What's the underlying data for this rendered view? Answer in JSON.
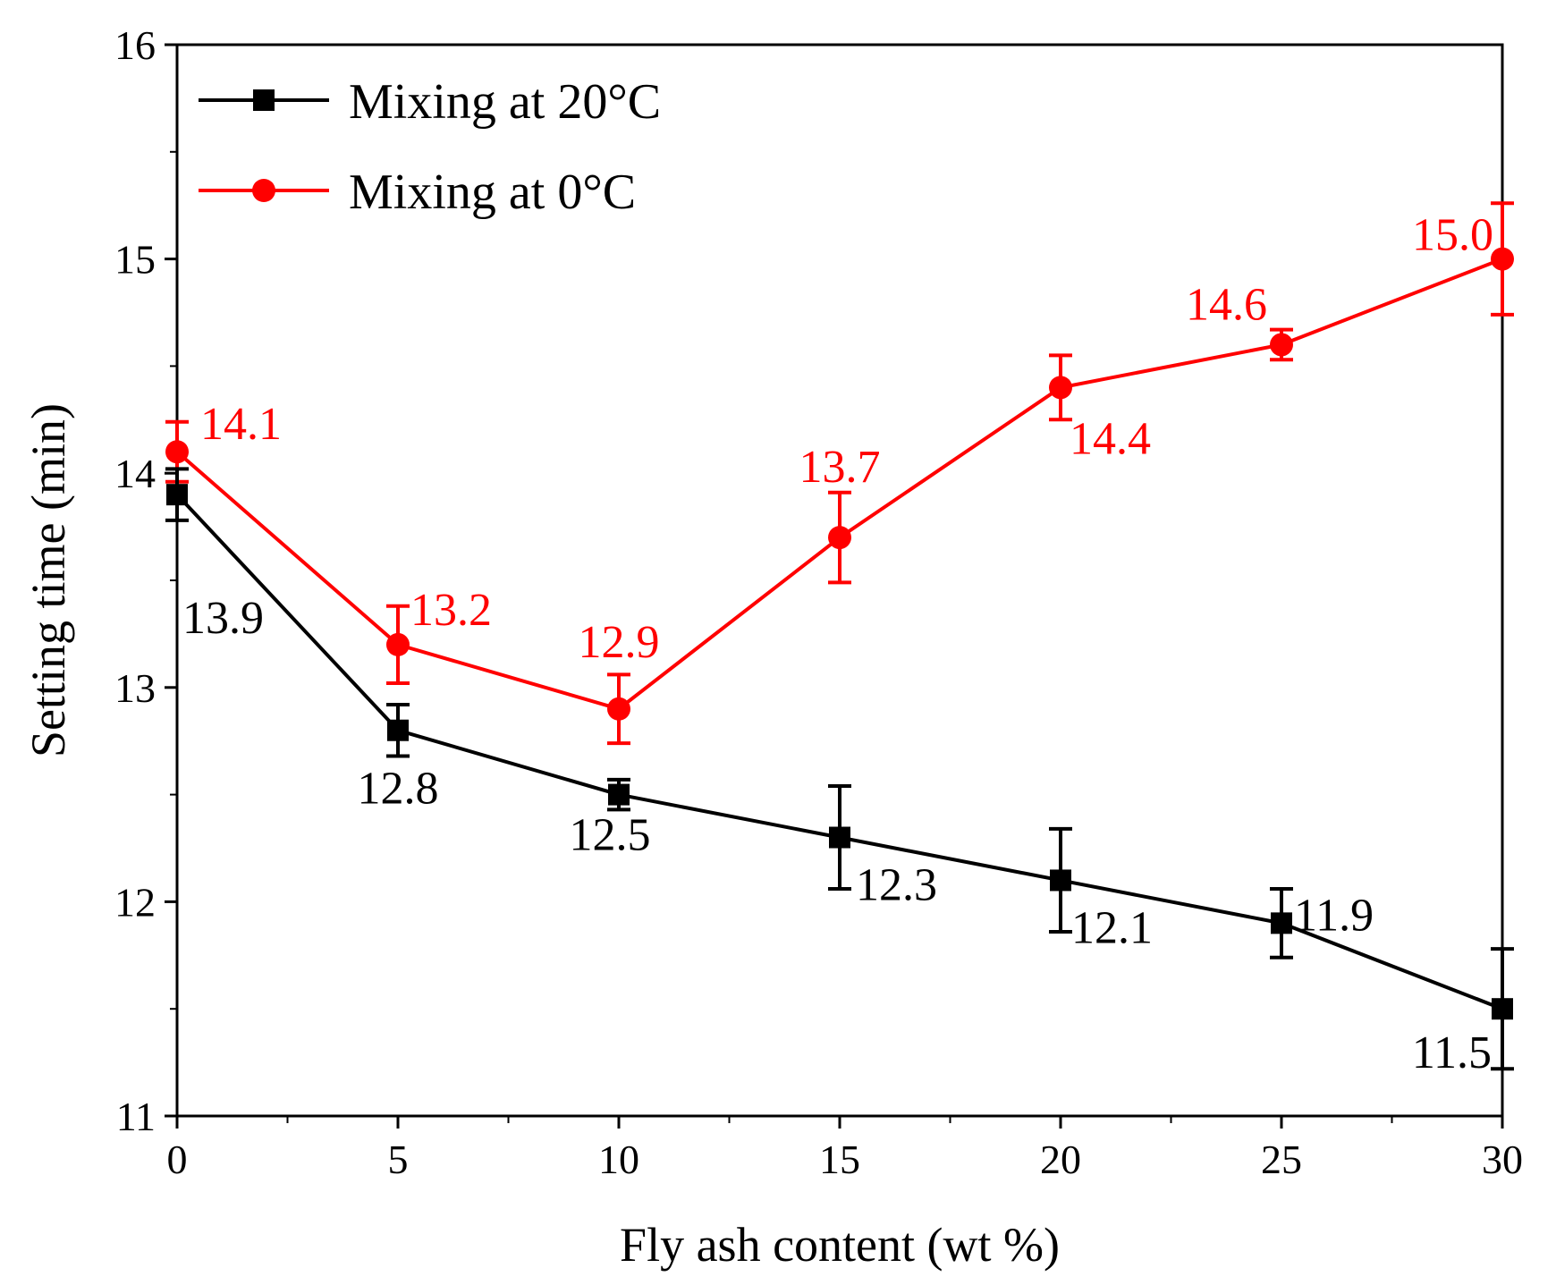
{
  "chart_data": {
    "type": "line",
    "xlabel": "Fly ash content (wt %)",
    "ylabel": "Setting time (min)",
    "xlim": [
      0,
      30
    ],
    "ylim": [
      11,
      16
    ],
    "xticks": [
      0,
      5,
      10,
      15,
      20,
      25,
      30
    ],
    "xtick_labels": [
      "0",
      "5",
      "10",
      "15",
      "20",
      "25",
      "30"
    ],
    "yticks": [
      11,
      12,
      13,
      14,
      15,
      16
    ],
    "ytick_labels": [
      "11",
      "12",
      "13",
      "14",
      "15",
      "16"
    ],
    "grid": false,
    "legend_position": "top-left",
    "x": [
      0,
      5,
      10,
      15,
      20,
      25,
      30
    ],
    "series": [
      {
        "name": "Mixing at 20°C",
        "color": "#000000",
        "marker": "square",
        "values": [
          13.9,
          12.8,
          12.5,
          12.3,
          12.1,
          11.9,
          11.5
        ],
        "errors": [
          0.12,
          0.12,
          0.07,
          0.24,
          0.24,
          0.16,
          0.28
        ],
        "labels": [
          "13.9",
          "12.8",
          "12.5",
          "12.3",
          "12.1",
          "11.9",
          "11.5"
        ]
      },
      {
        "name": "Mixing at 0°C",
        "color": "#ff0000",
        "marker": "circle",
        "values": [
          14.1,
          13.2,
          12.9,
          13.7,
          14.4,
          14.6,
          15.0
        ],
        "errors": [
          0.14,
          0.18,
          0.16,
          0.21,
          0.15,
          0.07,
          0.26
        ],
        "labels": [
          "14.1",
          "13.2",
          "12.9",
          "13.7",
          "14.4",
          "14.6",
          "15.0"
        ]
      }
    ]
  }
}
